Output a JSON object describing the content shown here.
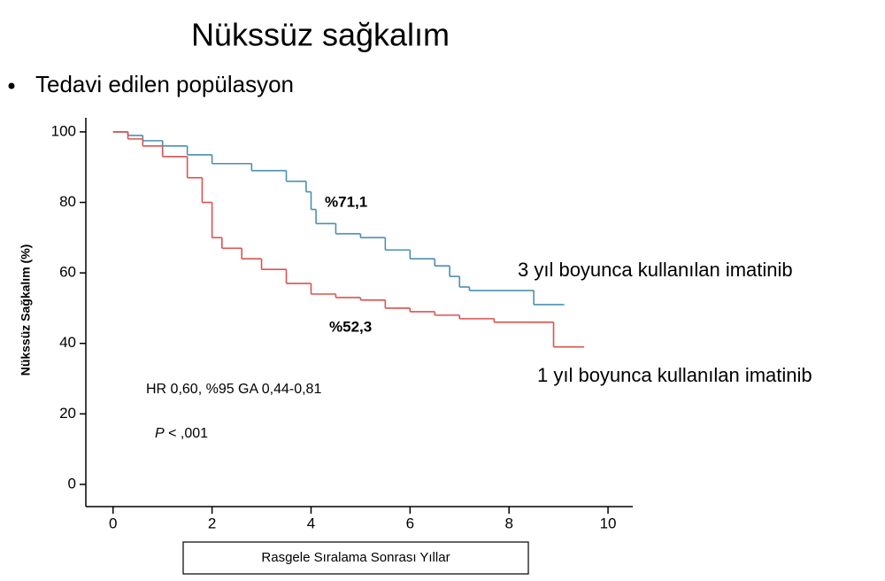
{
  "chart_data": {
    "type": "line",
    "drawstyle": "steps-post",
    "title": "Nükssüz sağkalım",
    "subtitle": "Tedavi edilen popülasyon",
    "y_label": "Nükssüz Sağkalım (%)",
    "x_label": "Rasgele Sıralama Sonrası Yıllar",
    "xlim": [
      -0.55,
      10.5
    ],
    "ylim": [
      -6.3,
      104
    ],
    "xticks": [
      0,
      2,
      4,
      6,
      8,
      10
    ],
    "yticks": [
      0,
      20,
      40,
      60,
      80,
      100
    ],
    "series": [
      {
        "name": "3 yıl boyunca kullanılan imatinib",
        "color": "#4b8fb0",
        "x": [
          0,
          0.3,
          0.6,
          1,
          1.5,
          2,
          2.8,
          3.5,
          3.9,
          4.0,
          4.1,
          4.5,
          5.0,
          5.5,
          6.0,
          6.5,
          6.8,
          7.0,
          7.2,
          8.5,
          9.1
        ],
        "values": [
          100,
          99,
          97.5,
          96,
          93.5,
          91,
          89,
          86,
          83,
          78,
          74,
          71.1,
          70,
          66.5,
          64,
          62,
          59,
          56,
          55,
          51,
          51
        ]
      },
      {
        "name": "1 yıl boyunca kullanılan imatinib",
        "color": "#d9534f",
        "x": [
          0,
          0.3,
          0.6,
          1.0,
          1.5,
          1.8,
          2.0,
          2.2,
          2.6,
          3.0,
          3.5,
          4.0,
          4.5,
          5.0,
          5.5,
          6.0,
          6.5,
          7.0,
          7.7,
          8.9,
          9.5
        ],
        "values": [
          100,
          98,
          96,
          93,
          87,
          80,
          70,
          67,
          64,
          61,
          57,
          54,
          53,
          52.3,
          50,
          49,
          48,
          47,
          46,
          39,
          39
        ]
      }
    ],
    "annotations": [
      "%71,1",
      "%52,3",
      "HR 0,60, %95 GA 0,44-0,81"
    ],
    "p_value": {
      "symbol": "P",
      "text": "< ,001"
    }
  }
}
